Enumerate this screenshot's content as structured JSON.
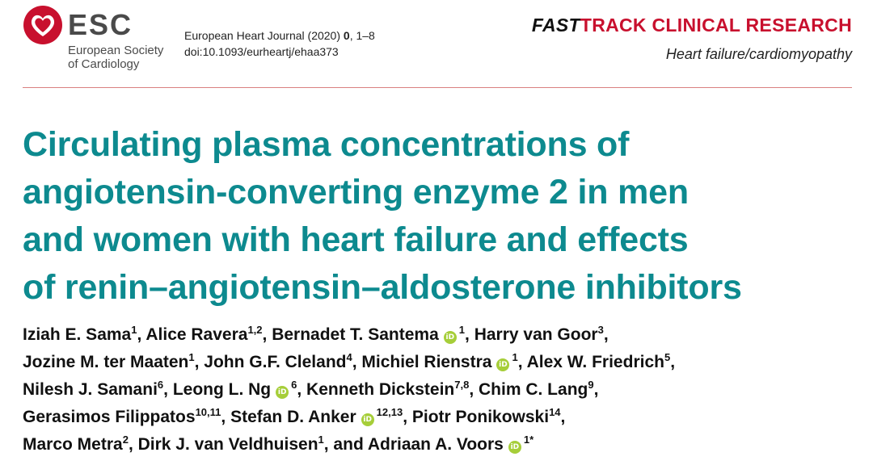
{
  "logo": {
    "abbrev": "ESC",
    "society_line1": "European Society",
    "society_line2": "of Cardiology"
  },
  "journal": {
    "name": "European Heart Journal (2020)",
    "volume": "0",
    "pages": ", 1–8",
    "doi": "doi:10.1093/eurheartj/ehaa373"
  },
  "section": {
    "fast": "FAST",
    "track": "TRACK CLINICAL RESEARCH",
    "category": "Heart failure/cardiomyopathy"
  },
  "title_lines": [
    "Circulating plasma concentrations of",
    "angiotensin-converting enzyme 2 in men",
    "and women with heart failure and effects",
    "of renin–angiotensin–aldosterone inhibitors"
  ],
  "orcid_glyph": "iD",
  "authors": [
    {
      "name": "Iziah E. Sama",
      "aff": "1",
      "orcid": false,
      "sep": ", "
    },
    {
      "name": "Alice Ravera",
      "aff": "1,2",
      "orcid": false,
      "sep": ", "
    },
    {
      "name": "Bernadet T. Santema",
      "aff": "1",
      "orcid": true,
      "sep": ", "
    },
    {
      "name": "Harry van Goor",
      "aff": "3",
      "orcid": false,
      "sep": ","
    },
    {
      "name": "Jozine M. ter Maaten",
      "aff": "1",
      "orcid": false,
      "sep": ", "
    },
    {
      "name": "John G.F. Cleland",
      "aff": "4",
      "orcid": false,
      "sep": ", "
    },
    {
      "name": "Michiel Rienstra",
      "aff": "1",
      "orcid": true,
      "sep": ", "
    },
    {
      "name": "Alex W. Friedrich",
      "aff": "5",
      "orcid": false,
      "sep": ","
    },
    {
      "name": "Nilesh J. Samani",
      "aff": "6",
      "orcid": false,
      "sep": ", "
    },
    {
      "name": "Leong L. Ng",
      "aff": "6",
      "orcid": true,
      "sep": ", "
    },
    {
      "name": "Kenneth Dickstein",
      "aff": "7,8",
      "orcid": false,
      "sep": ", "
    },
    {
      "name": "Chim C. Lang",
      "aff": "9",
      "orcid": false,
      "sep": ","
    },
    {
      "name": "Gerasimos Filippatos",
      "aff": "10,11",
      "orcid": false,
      "sep": ", "
    },
    {
      "name": "Stefan D. Anker",
      "aff": "12,13",
      "orcid": true,
      "sep": ", "
    },
    {
      "name": "Piotr Ponikowski",
      "aff": "14",
      "orcid": false,
      "sep": ","
    },
    {
      "name": "Marco Metra",
      "aff": "2",
      "orcid": false,
      "sep": ", "
    },
    {
      "name": "Dirk J. van Veldhuisen",
      "aff": "1",
      "orcid": false,
      "sep": ", and "
    },
    {
      "name": "Adriaan A. Voors",
      "aff": "1*",
      "orcid": true,
      "sep": ""
    }
  ],
  "author_line_breaks": [
    4,
    8,
    12,
    15,
    18
  ],
  "colors": {
    "title": "#0d8a8f",
    "brand_red": "#c8102e",
    "orcid_green": "#a6ce39",
    "rule": "#d98080"
  }
}
